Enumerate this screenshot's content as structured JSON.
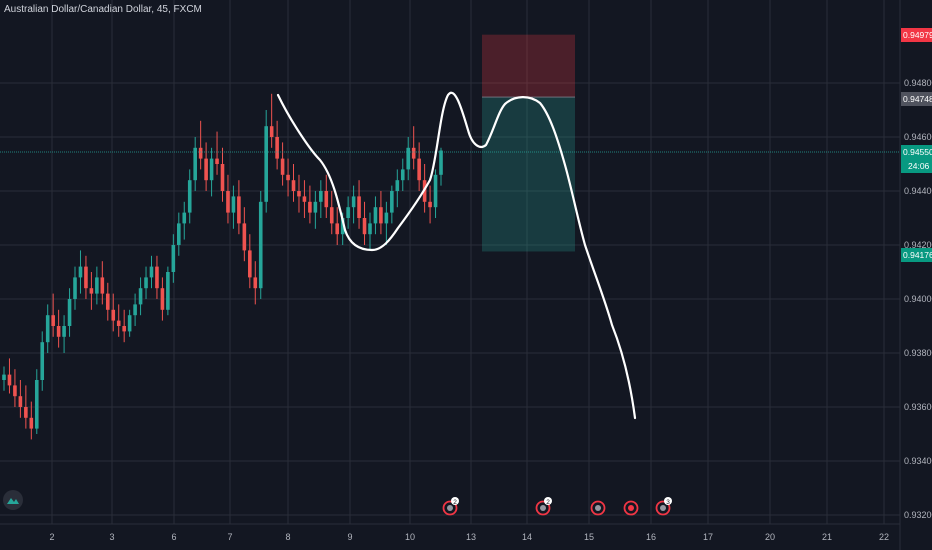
{
  "header": {
    "title": "Australian Dollar/Canadian Dollar, 45, FXCM"
  },
  "colors": {
    "background": "#131722",
    "grid": "#2a2e39",
    "axis_text": "#b2b5be",
    "bull": "#26a69a",
    "bear": "#ef5350",
    "drawing": "#ffffff",
    "stop_zone": "rgba(242,54,69,0.25)",
    "target_zone": "rgba(38,166,154,0.25)",
    "stop_label": "#f23645",
    "current_label": "#089981",
    "entry_label": "#50535e"
  },
  "chart_data": {
    "type": "candlestick",
    "title": "Australian Dollar/Canadian Dollar, 45, FXCM",
    "x_tick_labels": [
      "2",
      "3",
      "6",
      "7",
      "8",
      "9",
      "10",
      "13",
      "14",
      "15",
      "16",
      "17",
      "20",
      "21",
      "22"
    ],
    "y_tick_labels": [
      "0.94800",
      "0.94600",
      "0.94400",
      "0.94200",
      "0.94000",
      "0.93800",
      "0.93600",
      "0.93400",
      "0.93200"
    ],
    "ylim": [
      0.9318,
      0.9498
    ],
    "price_labels": [
      {
        "kind": "stop",
        "value": "0.94979"
      },
      {
        "kind": "entry",
        "value": "0.94748"
      },
      {
        "kind": "current",
        "value": "0.94550",
        "countdown": "24:06"
      },
      {
        "kind": "target",
        "value": "0.94176"
      }
    ],
    "position": {
      "direction": "short",
      "entry": 0.94748,
      "stop": 0.94979,
      "target": 0.94176
    },
    "price_path": [
      [
        0.937,
        0.9375,
        0.9366,
        0.9372
      ],
      [
        0.9372,
        0.9378,
        0.9365,
        0.9368
      ],
      [
        0.9368,
        0.9374,
        0.936,
        0.9364
      ],
      [
        0.9364,
        0.937,
        0.9356,
        0.936
      ],
      [
        0.936,
        0.9368,
        0.9352,
        0.9356
      ],
      [
        0.9356,
        0.9362,
        0.9348,
        0.9352
      ],
      [
        0.9352,
        0.9374,
        0.935,
        0.937
      ],
      [
        0.937,
        0.9388,
        0.9366,
        0.9384
      ],
      [
        0.9384,
        0.9398,
        0.938,
        0.9394
      ],
      [
        0.9394,
        0.9402,
        0.9386,
        0.939
      ],
      [
        0.939,
        0.9396,
        0.9382,
        0.9386
      ],
      [
        0.9386,
        0.9394,
        0.938,
        0.939
      ],
      [
        0.939,
        0.9404,
        0.9386,
        0.94
      ],
      [
        0.94,
        0.9412,
        0.9396,
        0.9408
      ],
      [
        0.9408,
        0.9418,
        0.9402,
        0.9412
      ],
      [
        0.9412,
        0.9416,
        0.94,
        0.9404
      ],
      [
        0.9404,
        0.941,
        0.9396,
        0.9402
      ],
      [
        0.9402,
        0.9412,
        0.9398,
        0.9408
      ],
      [
        0.9408,
        0.9414,
        0.9398,
        0.9402
      ],
      [
        0.9402,
        0.9406,
        0.9392,
        0.9396
      ],
      [
        0.9396,
        0.9402,
        0.9388,
        0.9392
      ],
      [
        0.9392,
        0.9398,
        0.9386,
        0.939
      ],
      [
        0.939,
        0.9396,
        0.9384,
        0.9388
      ],
      [
        0.9388,
        0.9396,
        0.9386,
        0.9394
      ],
      [
        0.9394,
        0.9402,
        0.939,
        0.9398
      ],
      [
        0.9398,
        0.9408,
        0.9394,
        0.9404
      ],
      [
        0.9404,
        0.9412,
        0.94,
        0.9408
      ],
      [
        0.9408,
        0.9416,
        0.9404,
        0.9412
      ],
      [
        0.9412,
        0.9416,
        0.94,
        0.9404
      ],
      [
        0.9404,
        0.9408,
        0.9392,
        0.9396
      ],
      [
        0.9396,
        0.9412,
        0.9394,
        0.941
      ],
      [
        0.941,
        0.9424,
        0.9406,
        0.942
      ],
      [
        0.942,
        0.9432,
        0.9416,
        0.9428
      ],
      [
        0.9428,
        0.9436,
        0.9422,
        0.9432
      ],
      [
        0.9432,
        0.9448,
        0.9428,
        0.9444
      ],
      [
        0.9444,
        0.946,
        0.944,
        0.9456
      ],
      [
        0.9456,
        0.9466,
        0.9448,
        0.9452
      ],
      [
        0.9452,
        0.9458,
        0.944,
        0.9444
      ],
      [
        0.9444,
        0.9456,
        0.9438,
        0.9452
      ],
      [
        0.9452,
        0.9462,
        0.9446,
        0.945
      ],
      [
        0.945,
        0.9456,
        0.9436,
        0.944
      ],
      [
        0.944,
        0.9446,
        0.9428,
        0.9432
      ],
      [
        0.9432,
        0.9442,
        0.9426,
        0.9438
      ],
      [
        0.9438,
        0.9444,
        0.9424,
        0.9428
      ],
      [
        0.9428,
        0.9434,
        0.9414,
        0.9418
      ],
      [
        0.9418,
        0.9424,
        0.9404,
        0.9408
      ],
      [
        0.9408,
        0.9414,
        0.9398,
        0.9404
      ],
      [
        0.9404,
        0.944,
        0.94,
        0.9436
      ],
      [
        0.9436,
        0.947,
        0.9432,
        0.9464
      ],
      [
        0.9464,
        0.9476,
        0.9456,
        0.946
      ],
      [
        0.946,
        0.9466,
        0.9448,
        0.9452
      ],
      [
        0.9452,
        0.9458,
        0.9442,
        0.9446
      ],
      [
        0.9446,
        0.9452,
        0.9438,
        0.9444
      ],
      [
        0.9444,
        0.945,
        0.9436,
        0.944
      ],
      [
        0.944,
        0.9446,
        0.9432,
        0.9438
      ],
      [
        0.9438,
        0.9444,
        0.943,
        0.9436
      ],
      [
        0.9436,
        0.9442,
        0.9428,
        0.9432
      ],
      [
        0.9432,
        0.944,
        0.9426,
        0.9436
      ],
      [
        0.9436,
        0.9444,
        0.943,
        0.944
      ],
      [
        0.944,
        0.9446,
        0.943,
        0.9434
      ],
      [
        0.9434,
        0.944,
        0.9424,
        0.9428
      ],
      [
        0.9428,
        0.9434,
        0.942,
        0.9424
      ],
      [
        0.9424,
        0.9432,
        0.942,
        0.943
      ],
      [
        0.943,
        0.9438,
        0.9426,
        0.9434
      ],
      [
        0.9434,
        0.9442,
        0.9428,
        0.9438
      ],
      [
        0.9438,
        0.9444,
        0.9426,
        0.943
      ],
      [
        0.943,
        0.9436,
        0.942,
        0.9424
      ],
      [
        0.9424,
        0.9432,
        0.9418,
        0.9428
      ],
      [
        0.9428,
        0.9438,
        0.9424,
        0.9434
      ],
      [
        0.9434,
        0.944,
        0.9424,
        0.9428
      ],
      [
        0.9428,
        0.9436,
        0.942,
        0.9432
      ],
      [
        0.9432,
        0.9442,
        0.9428,
        0.944
      ],
      [
        0.944,
        0.9448,
        0.9434,
        0.9444
      ],
      [
        0.9444,
        0.9452,
        0.944,
        0.9448
      ],
      [
        0.9448,
        0.946,
        0.9444,
        0.9456
      ],
      [
        0.9456,
        0.9464,
        0.9448,
        0.9452
      ],
      [
        0.9452,
        0.9458,
        0.944,
        0.9444
      ],
      [
        0.9444,
        0.945,
        0.9432,
        0.9436
      ],
      [
        0.9436,
        0.9442,
        0.9428,
        0.9434
      ],
      [
        0.9434,
        0.9448,
        0.943,
        0.9446
      ],
      [
        0.9446,
        0.9456,
        0.9442,
        0.9455
      ]
    ],
    "annotations": [
      "hand-drawn projection curve",
      "short position risk/reward box"
    ],
    "event_markers": [
      "2",
      "2",
      "3"
    ],
    "grid": true
  }
}
